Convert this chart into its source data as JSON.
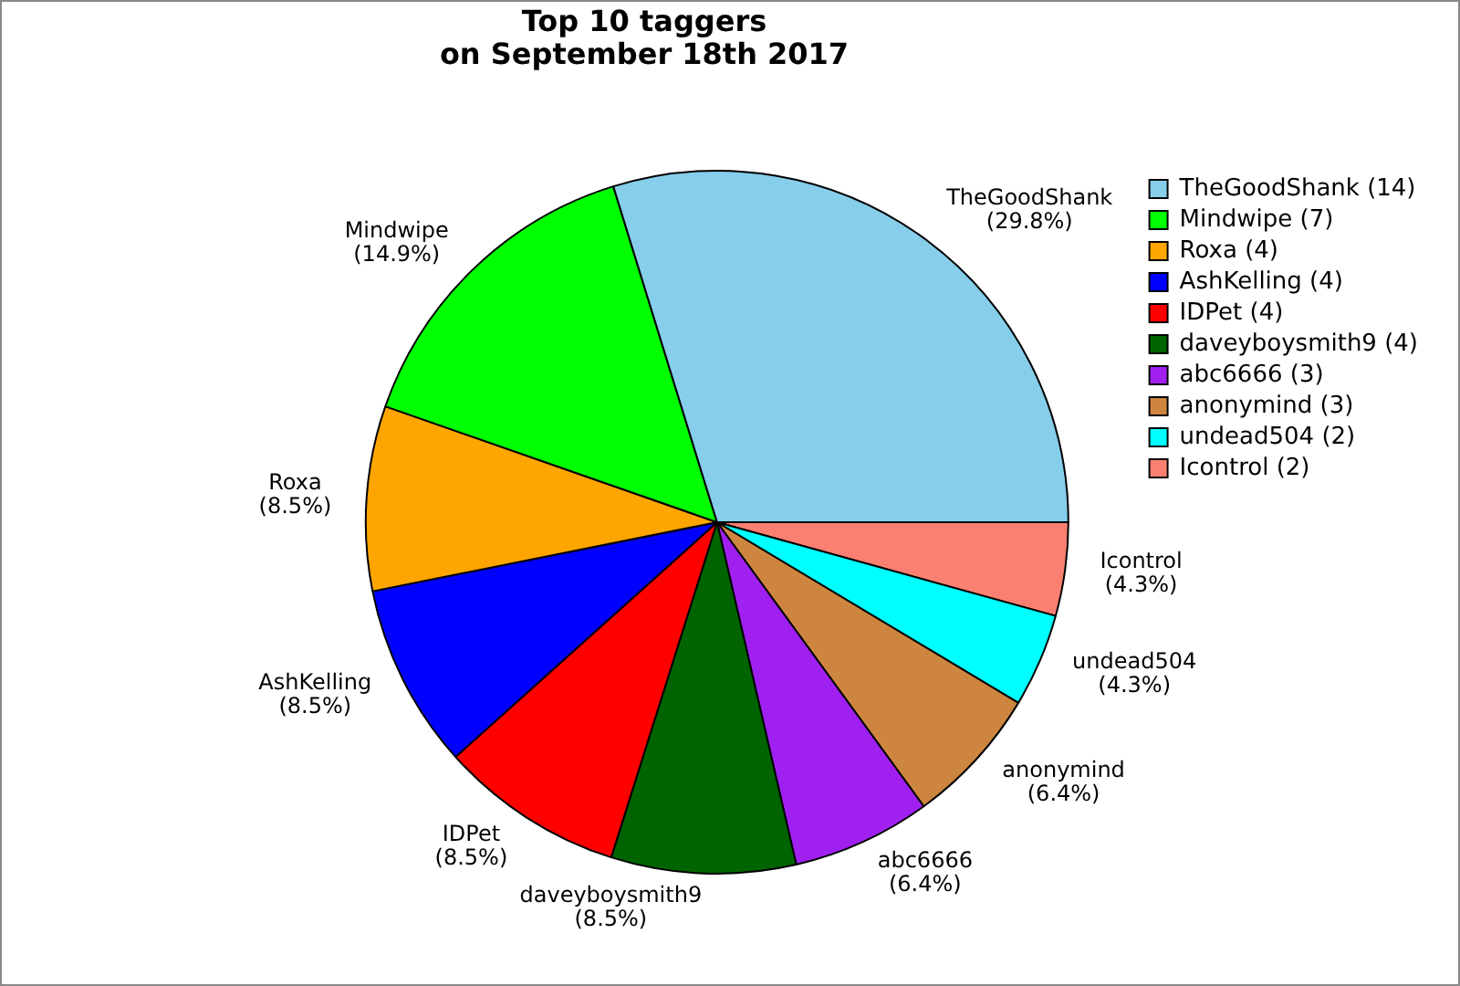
{
  "chart_data": {
    "type": "pie",
    "title": "Top 10 taggers\non September 18th 2017",
    "categories": [
      "TheGoodShank (14)",
      "Mindwipe (7)",
      "Roxa (4)",
      "AshKelling (4)",
      "IDPet (4)",
      "daveyboysmith9 (4)",
      "abc6666 (3)",
      "anonymind (3)",
      "undead504 (2)",
      "Icontrol (2)"
    ],
    "values": [
      29.8,
      14.9,
      8.5,
      8.5,
      8.5,
      8.5,
      6.4,
      6.4,
      4.3,
      4.3
    ],
    "value_labels": [
      "TheGoodShank\n(29.8%)",
      "Mindwipe\n(14.9%)",
      "Roxa\n(8.5%)",
      "AshKelling\n(8.5%)",
      "IDPet\n(8.5%)",
      "daveyboysmith9\n(8.5%)",
      "abc6666\n(6.4%)",
      "anonymind\n(6.4%)",
      "undead504\n(4.3%)",
      "Icontrol\n(4.3%)"
    ],
    "colors": [
      "#87ceeb",
      "#00ff00",
      "#ffa500",
      "#0000ff",
      "#ff0000",
      "#006400",
      "#a020f0",
      "#cd853f",
      "#00ffff",
      "#fa8072"
    ],
    "legend": "top right"
  }
}
